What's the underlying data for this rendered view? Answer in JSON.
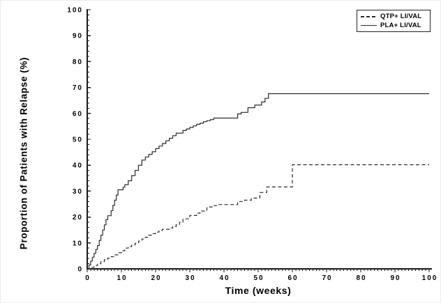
{
  "colors": {
    "curve": "#2b2b2b",
    "axis": "#1a1a1a",
    "text": "#000000",
    "background": "#ffffff",
    "legend_border": "#222222"
  },
  "legend": {
    "items": [
      {
        "label": "QTP+ LI/VAL",
        "style": "dashed"
      },
      {
        "label": "PLA+ LI/VAL",
        "style": "solid"
      }
    ]
  },
  "chart_data": {
    "type": "line",
    "subtype": "kaplan-meier-step",
    "title": "",
    "xlabel": "Time (weeks)",
    "ylabel": "Proportion of Patients with Relapse (%)",
    "xlim": [
      0,
      100
    ],
    "ylim": [
      0,
      100
    ],
    "x_major_ticks": [
      0,
      10,
      20,
      30,
      40,
      50,
      60,
      70,
      80,
      90,
      100
    ],
    "y_major_ticks": [
      0,
      10,
      20,
      30,
      40,
      50,
      60,
      70,
      80,
      90,
      100
    ],
    "x_minor_step": 1,
    "y_minor_step": 2,
    "grid": "off",
    "legend_position": "top-right",
    "series": [
      {
        "name": "QTP+ LI/VAL",
        "style": "dashed",
        "points": [
          [
            0,
            0
          ],
          [
            1,
            0.6
          ],
          [
            2,
            1.3
          ],
          [
            3,
            2
          ],
          [
            4,
            2.8
          ],
          [
            5,
            3.5
          ],
          [
            6,
            4.1
          ],
          [
            7,
            4.7
          ],
          [
            8,
            5.4
          ],
          [
            9,
            6.2
          ],
          [
            10,
            7
          ],
          [
            11,
            8
          ],
          [
            12,
            8.6
          ],
          [
            13,
            9.2
          ],
          [
            14,
            9.9
          ],
          [
            15,
            10.7
          ],
          [
            16,
            11.5
          ],
          [
            17,
            12.2
          ],
          [
            18,
            13
          ],
          [
            19,
            13.6
          ],
          [
            20,
            14.2
          ],
          [
            21,
            14.8
          ],
          [
            22,
            15.3
          ],
          [
            24,
            15.8
          ],
          [
            25,
            16.3
          ],
          [
            26,
            17.1
          ],
          [
            27,
            18
          ],
          [
            28,
            19.3
          ],
          [
            30,
            20.6
          ],
          [
            32,
            21.5
          ],
          [
            33,
            22.3
          ],
          [
            35,
            23.9
          ],
          [
            37,
            24.4
          ],
          [
            38,
            24.8
          ],
          [
            44,
            26
          ],
          [
            46,
            26.5
          ],
          [
            48,
            27.3
          ],
          [
            50.5,
            29.5
          ],
          [
            52.5,
            31.6
          ],
          [
            60,
            40.2
          ],
          [
            100,
            40.2
          ]
        ]
      },
      {
        "name": "PLA+ LI/VAL",
        "style": "solid",
        "points": [
          [
            0,
            0
          ],
          [
            0.5,
            1.5
          ],
          [
            1,
            3
          ],
          [
            1.5,
            4.5
          ],
          [
            2,
            6
          ],
          [
            2.5,
            7.5
          ],
          [
            3,
            9
          ],
          [
            3.5,
            11
          ],
          [
            4,
            13
          ],
          [
            4.5,
            15
          ],
          [
            5,
            17
          ],
          [
            5.5,
            19
          ],
          [
            6,
            20.5
          ],
          [
            7,
            22.5
          ],
          [
            7.5,
            24.5
          ],
          [
            8,
            26.5
          ],
          [
            8.5,
            28.5
          ],
          [
            9,
            30.5
          ],
          [
            10.5,
            31.5
          ],
          [
            11,
            32.5
          ],
          [
            12,
            34
          ],
          [
            13,
            36
          ],
          [
            14,
            38
          ],
          [
            15,
            40
          ],
          [
            16,
            42
          ],
          [
            17,
            43.2
          ],
          [
            18,
            44.2
          ],
          [
            19,
            45.2
          ],
          [
            20,
            46.4
          ],
          [
            21,
            47.4
          ],
          [
            22,
            48.4
          ],
          [
            23,
            49.4
          ],
          [
            24,
            50.4
          ],
          [
            25,
            51.4
          ],
          [
            26,
            52.4
          ],
          [
            28,
            53.4
          ],
          [
            29,
            54
          ],
          [
            30,
            54.6
          ],
          [
            31,
            55.2
          ],
          [
            32,
            55.8
          ],
          [
            33,
            56.2
          ],
          [
            34,
            56.8
          ],
          [
            35,
            57.2
          ],
          [
            36,
            57.6
          ],
          [
            37,
            58.2
          ],
          [
            44,
            59.8
          ],
          [
            45,
            60.4
          ],
          [
            47,
            62.2
          ],
          [
            49,
            63.2
          ],
          [
            51,
            64.4
          ],
          [
            52,
            65.8
          ],
          [
            53,
            67.6
          ],
          [
            100,
            67.6
          ]
        ]
      }
    ]
  }
}
